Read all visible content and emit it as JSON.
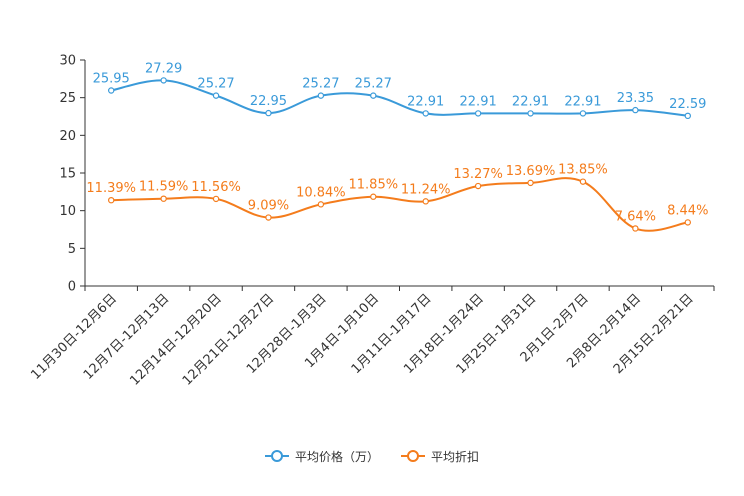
{
  "chart_data": {
    "type": "line",
    "categories": [
      "11月30日-12月6日",
      "12月7日-12月13日",
      "12月14日-12月20日",
      "12月21日-12月27日",
      "12月28日-1月3日",
      "1月4日-1月10日",
      "1月11日-1月17日",
      "1月18日-1月24日",
      "1月25日-1月31日",
      "2月1日-2月7日",
      "2月8日-2月14日",
      "2月15日-2月21日"
    ],
    "ylim": [
      0,
      30
    ],
    "yticks": [
      "0",
      "5",
      "10",
      "15",
      "20",
      "25",
      "30"
    ],
    "series": [
      {
        "name": "平均价格（万）",
        "color": "#3a9ad9",
        "values": [
          25.95,
          27.29,
          25.27,
          22.95,
          25.27,
          25.27,
          22.91,
          22.91,
          22.91,
          22.91,
          23.35,
          22.59
        ],
        "labels": [
          "25.95",
          "27.29",
          "25.27",
          "22.95",
          "25.27",
          "25.27",
          "22.91",
          "22.91",
          "22.91",
          "22.91",
          "23.35",
          "22.59"
        ]
      },
      {
        "name": "平均折扣",
        "color": "#f47c1c",
        "values": [
          11.39,
          11.59,
          11.56,
          9.09,
          10.84,
          11.85,
          11.24,
          13.27,
          13.69,
          13.85,
          7.64,
          8.44
        ],
        "labels": [
          "11.39%",
          "11.59%",
          "11.56%",
          "9.09%",
          "10.84%",
          "11.85%",
          "11.24%",
          "13.27%",
          "13.69%",
          "13.85%",
          "7.64%",
          "8.44%"
        ]
      }
    ]
  },
  "legend": {
    "price_label": "平均价格（万）",
    "discount_label": "平均折扣"
  }
}
